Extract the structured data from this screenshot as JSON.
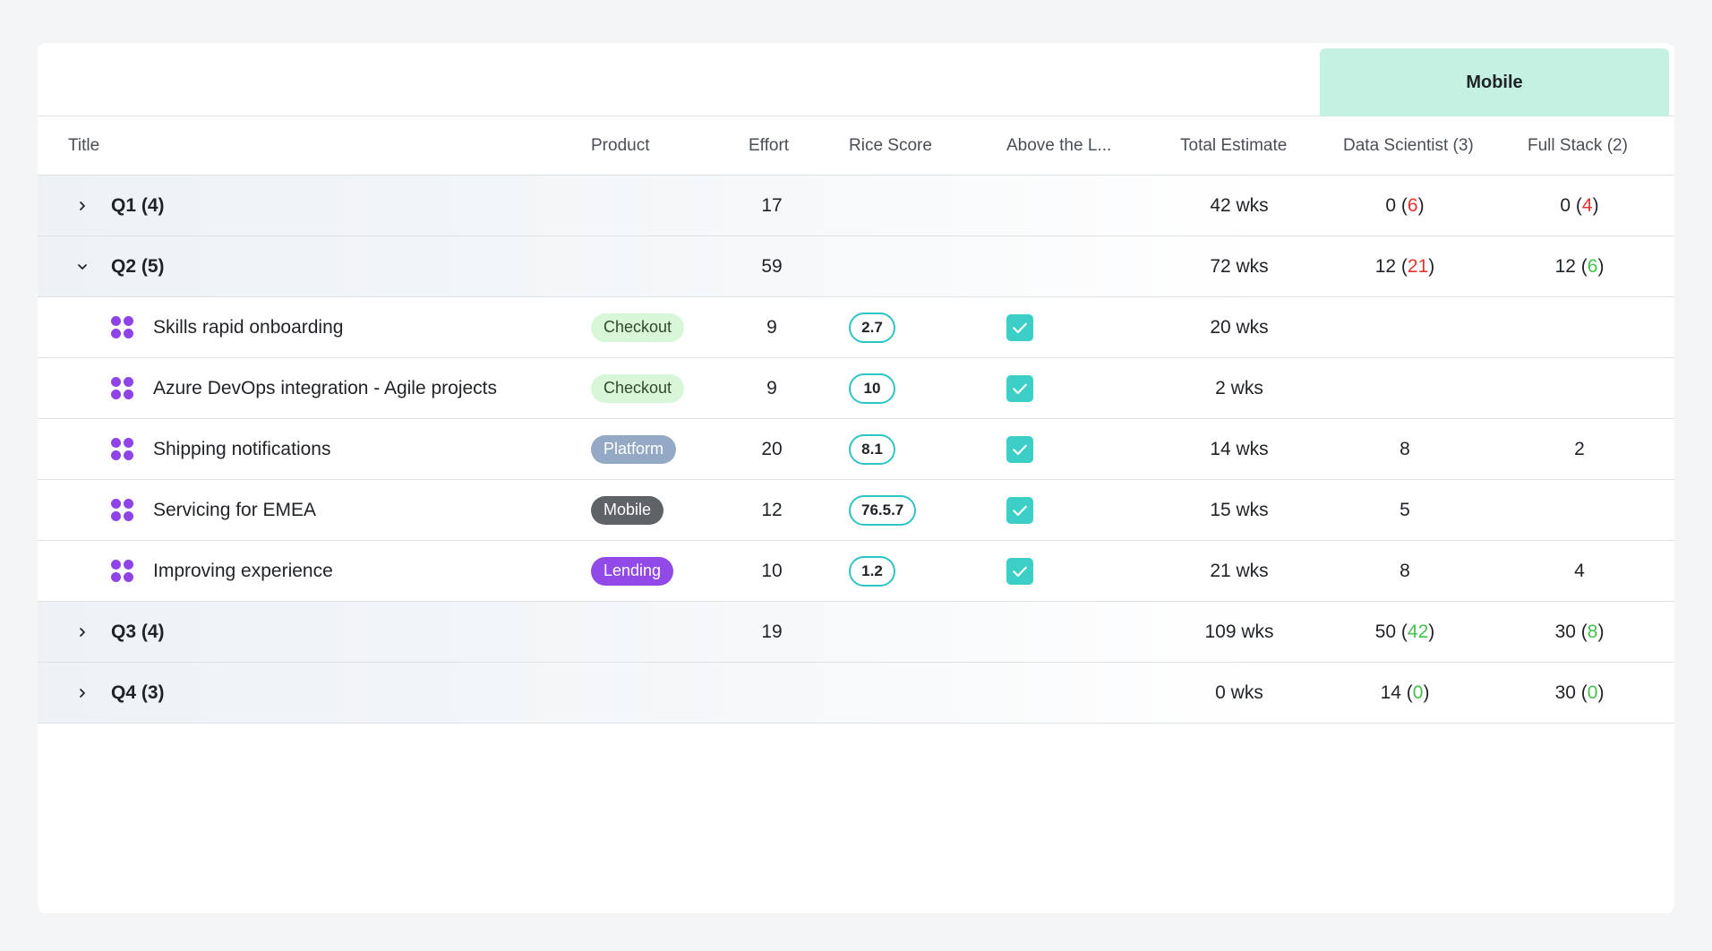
{
  "group_header": {
    "label": "Mobile"
  },
  "columns": {
    "title": "Title",
    "product": "Product",
    "effort": "Effort",
    "rice_score": "Rice Score",
    "above_line": "Above the L...",
    "total_estimate": "Total Estimate",
    "data_scientist": "Data Scientist (3)",
    "full_stack": "Full Stack (2)"
  },
  "colors": {
    "accent_band": "#c4f1e1",
    "checkbox": "#3ccfc7",
    "score_border": "#2ec4c4",
    "item_icon": "#8f44e8",
    "over": "#e3342f",
    "under": "#45c24b"
  },
  "rows": [
    {
      "type": "group",
      "title": "Q1 (4)",
      "expanded": false,
      "effort": "17",
      "total": "42 wks",
      "ds": {
        "value": "0",
        "paren": "6",
        "status": "red"
      },
      "fs": {
        "value": "0",
        "paren": "4",
        "status": "red"
      }
    },
    {
      "type": "group",
      "title": "Q2 (5)",
      "expanded": true,
      "effort": "59",
      "total": "72 wks",
      "ds": {
        "value": "12",
        "paren": "21",
        "status": "red"
      },
      "fs": {
        "value": "12",
        "paren": "6",
        "status": "green"
      }
    },
    {
      "type": "item",
      "title": "Skills rapid onboarding",
      "product": "Checkout",
      "product_bg": "#d8f7d8",
      "product_fg": "#2f4a2f",
      "effort": "9",
      "score": "2.7",
      "above": true,
      "total": "20 wks",
      "ds": "",
      "fs": ""
    },
    {
      "type": "item",
      "title": "Azure DevOps integration - Agile projects",
      "product": "Checkout",
      "product_bg": "#d8f7d8",
      "product_fg": "#2f4a2f",
      "effort": "9",
      "score": "10",
      "above": true,
      "total": "2 wks",
      "ds": "",
      "fs": ""
    },
    {
      "type": "item",
      "title": "Shipping notifications",
      "product": "Platform",
      "product_bg": "#94a9c4",
      "product_fg": "#ffffff",
      "effort": "20",
      "score": "8.1",
      "above": true,
      "total": "14 wks",
      "ds": "8",
      "fs": "2"
    },
    {
      "type": "item",
      "title": "Servicing for EMEA",
      "product": "Mobile",
      "product_bg": "#5f6266",
      "product_fg": "#ffffff",
      "effort": "12",
      "score": "76.5.7",
      "above": true,
      "total": "15 wks",
      "ds": "5",
      "fs": ""
    },
    {
      "type": "item",
      "title": "Improving experience",
      "product": "Lending",
      "product_bg": "#9149e8",
      "product_fg": "#ffffff",
      "effort": "10",
      "score": "1.2",
      "above": true,
      "total": "21 wks",
      "ds": "8",
      "fs": "4"
    },
    {
      "type": "group",
      "title": "Q3 (4)",
      "expanded": false,
      "effort": "19",
      "total": "109 wks",
      "ds": {
        "value": "50",
        "paren": "42",
        "status": "green"
      },
      "fs": {
        "value": "30",
        "paren": "8",
        "status": "green"
      }
    },
    {
      "type": "group",
      "title": "Q4 (3)",
      "expanded": false,
      "effort": "",
      "total": "0 wks",
      "ds": {
        "value": "14",
        "paren": "0",
        "status": "green"
      },
      "fs": {
        "value": "30",
        "paren": "0",
        "status": "green"
      }
    }
  ]
}
